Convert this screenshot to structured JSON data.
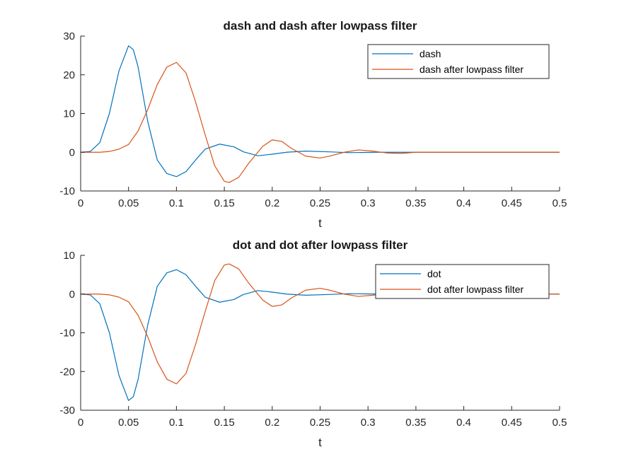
{
  "figure": {
    "background": "#ffffff"
  },
  "chart_data": [
    {
      "type": "line",
      "title": "dash and dash after lowpass filter",
      "xlabel": "t",
      "ylabel": "",
      "xlim": [
        0,
        0.5
      ],
      "ylim": [
        -10,
        30
      ],
      "xticks": [
        0,
        0.05,
        0.1,
        0.15,
        0.2,
        0.25,
        0.3,
        0.35,
        0.4,
        0.45,
        0.5
      ],
      "xtick_labels": [
        "0",
        "0.05",
        "0.1",
        "0.15",
        "0.2",
        "0.25",
        "0.3",
        "0.35",
        "0.4",
        "0.45",
        "0.5"
      ],
      "yticks": [
        -10,
        0,
        10,
        20,
        30
      ],
      "ytick_labels": [
        "-10",
        "0",
        "10",
        "20",
        "30"
      ],
      "grid": false,
      "legend_position": "top-right",
      "series": [
        {
          "name": "dash",
          "color": "#0072BD",
          "points": [
            [
              0,
              0
            ],
            [
              0.01,
              0.2
            ],
            [
              0.02,
              2.5
            ],
            [
              0.03,
              10
            ],
            [
              0.04,
              21
            ],
            [
              0.05,
              27.5
            ],
            [
              0.055,
              26.5
            ],
            [
              0.06,
              22
            ],
            [
              0.07,
              8
            ],
            [
              0.08,
              -2
            ],
            [
              0.09,
              -5.5
            ],
            [
              0.1,
              -6.3
            ],
            [
              0.11,
              -5
            ],
            [
              0.12,
              -2
            ],
            [
              0.13,
              0.8
            ],
            [
              0.145,
              2.1
            ],
            [
              0.16,
              1.4
            ],
            [
              0.17,
              0.1
            ],
            [
              0.185,
              -0.9
            ],
            [
              0.2,
              -0.5
            ],
            [
              0.215,
              0
            ],
            [
              0.235,
              0.3
            ],
            [
              0.26,
              0.1
            ],
            [
              0.28,
              -0.1
            ],
            [
              0.31,
              0
            ],
            [
              0.34,
              0
            ],
            [
              0.36,
              0
            ],
            [
              0.5,
              0
            ]
          ]
        },
        {
          "name": "dash after lowpass filter",
          "color": "#D95319",
          "points": [
            [
              0,
              0
            ],
            [
              0.02,
              0
            ],
            [
              0.03,
              0.2
            ],
            [
              0.04,
              0.8
            ],
            [
              0.05,
              2
            ],
            [
              0.06,
              5.5
            ],
            [
              0.07,
              11
            ],
            [
              0.08,
              17.5
            ],
            [
              0.09,
              22
            ],
            [
              0.1,
              23.2
            ],
            [
              0.11,
              20.5
            ],
            [
              0.12,
              13
            ],
            [
              0.13,
              4.5
            ],
            [
              0.14,
              -3.5
            ],
            [
              0.15,
              -7.5
            ],
            [
              0.155,
              -7.8
            ],
            [
              0.165,
              -6.5
            ],
            [
              0.175,
              -3
            ],
            [
              0.19,
              1.5
            ],
            [
              0.2,
              3.2
            ],
            [
              0.21,
              2.8
            ],
            [
              0.22,
              1
            ],
            [
              0.235,
              -1
            ],
            [
              0.25,
              -1.5
            ],
            [
              0.26,
              -1
            ],
            [
              0.275,
              0
            ],
            [
              0.29,
              0.6
            ],
            [
              0.305,
              0.3
            ],
            [
              0.32,
              -0.2
            ],
            [
              0.335,
              -0.3
            ],
            [
              0.35,
              0
            ],
            [
              0.36,
              0
            ],
            [
              0.5,
              0
            ]
          ]
        }
      ]
    },
    {
      "type": "line",
      "title": "dot and dot after lowpass filter",
      "xlabel": "t",
      "ylabel": "",
      "xlim": [
        0,
        0.5
      ],
      "ylim": [
        -30,
        10
      ],
      "xticks": [
        0,
        0.05,
        0.1,
        0.15,
        0.2,
        0.25,
        0.3,
        0.35,
        0.4,
        0.45,
        0.5
      ],
      "xtick_labels": [
        "0",
        "0.05",
        "0.1",
        "0.15",
        "0.2",
        "0.25",
        "0.3",
        "0.35",
        "0.4",
        "0.45",
        "0.5"
      ],
      "yticks": [
        -30,
        -20,
        -10,
        0,
        10
      ],
      "ytick_labels": [
        "-30",
        "-20",
        "-10",
        "0",
        "10"
      ],
      "grid": false,
      "legend_position": "top-right",
      "series": [
        {
          "name": "dot",
          "color": "#0072BD",
          "points": [
            [
              0,
              0
            ],
            [
              0.01,
              -0.2
            ],
            [
              0.02,
              -2.5
            ],
            [
              0.03,
              -10
            ],
            [
              0.04,
              -21
            ],
            [
              0.05,
              -27.5
            ],
            [
              0.055,
              -26.5
            ],
            [
              0.06,
              -22
            ],
            [
              0.07,
              -8
            ],
            [
              0.08,
              2
            ],
            [
              0.09,
              5.5
            ],
            [
              0.1,
              6.3
            ],
            [
              0.11,
              5
            ],
            [
              0.12,
              2
            ],
            [
              0.13,
              -0.8
            ],
            [
              0.145,
              -2.1
            ],
            [
              0.16,
              -1.4
            ],
            [
              0.17,
              -0.1
            ],
            [
              0.185,
              0.9
            ],
            [
              0.2,
              0.5
            ],
            [
              0.215,
              0
            ],
            [
              0.235,
              -0.3
            ],
            [
              0.26,
              -0.1
            ],
            [
              0.28,
              0.1
            ],
            [
              0.31,
              0
            ],
            [
              0.34,
              0
            ],
            [
              0.36,
              0
            ],
            [
              0.5,
              0
            ]
          ]
        },
        {
          "name": "dot after lowpass filter",
          "color": "#D95319",
          "points": [
            [
              0,
              0
            ],
            [
              0.02,
              0
            ],
            [
              0.03,
              -0.2
            ],
            [
              0.04,
              -0.8
            ],
            [
              0.05,
              -2
            ],
            [
              0.06,
              -5.5
            ],
            [
              0.07,
              -11
            ],
            [
              0.08,
              -17.5
            ],
            [
              0.09,
              -22
            ],
            [
              0.1,
              -23.2
            ],
            [
              0.11,
              -20.5
            ],
            [
              0.12,
              -13
            ],
            [
              0.13,
              -4.5
            ],
            [
              0.14,
              3.5
            ],
            [
              0.15,
              7.5
            ],
            [
              0.155,
              7.8
            ],
            [
              0.165,
              6.5
            ],
            [
              0.175,
              3
            ],
            [
              0.19,
              -1.5
            ],
            [
              0.2,
              -3.2
            ],
            [
              0.21,
              -2.8
            ],
            [
              0.22,
              -1
            ],
            [
              0.235,
              1
            ],
            [
              0.25,
              1.5
            ],
            [
              0.26,
              1
            ],
            [
              0.275,
              0
            ],
            [
              0.29,
              -0.6
            ],
            [
              0.305,
              -0.3
            ],
            [
              0.32,
              0.2
            ],
            [
              0.335,
              0.3
            ],
            [
              0.35,
              0
            ],
            [
              0.36,
              0
            ],
            [
              0.5,
              0
            ]
          ]
        }
      ]
    }
  ]
}
